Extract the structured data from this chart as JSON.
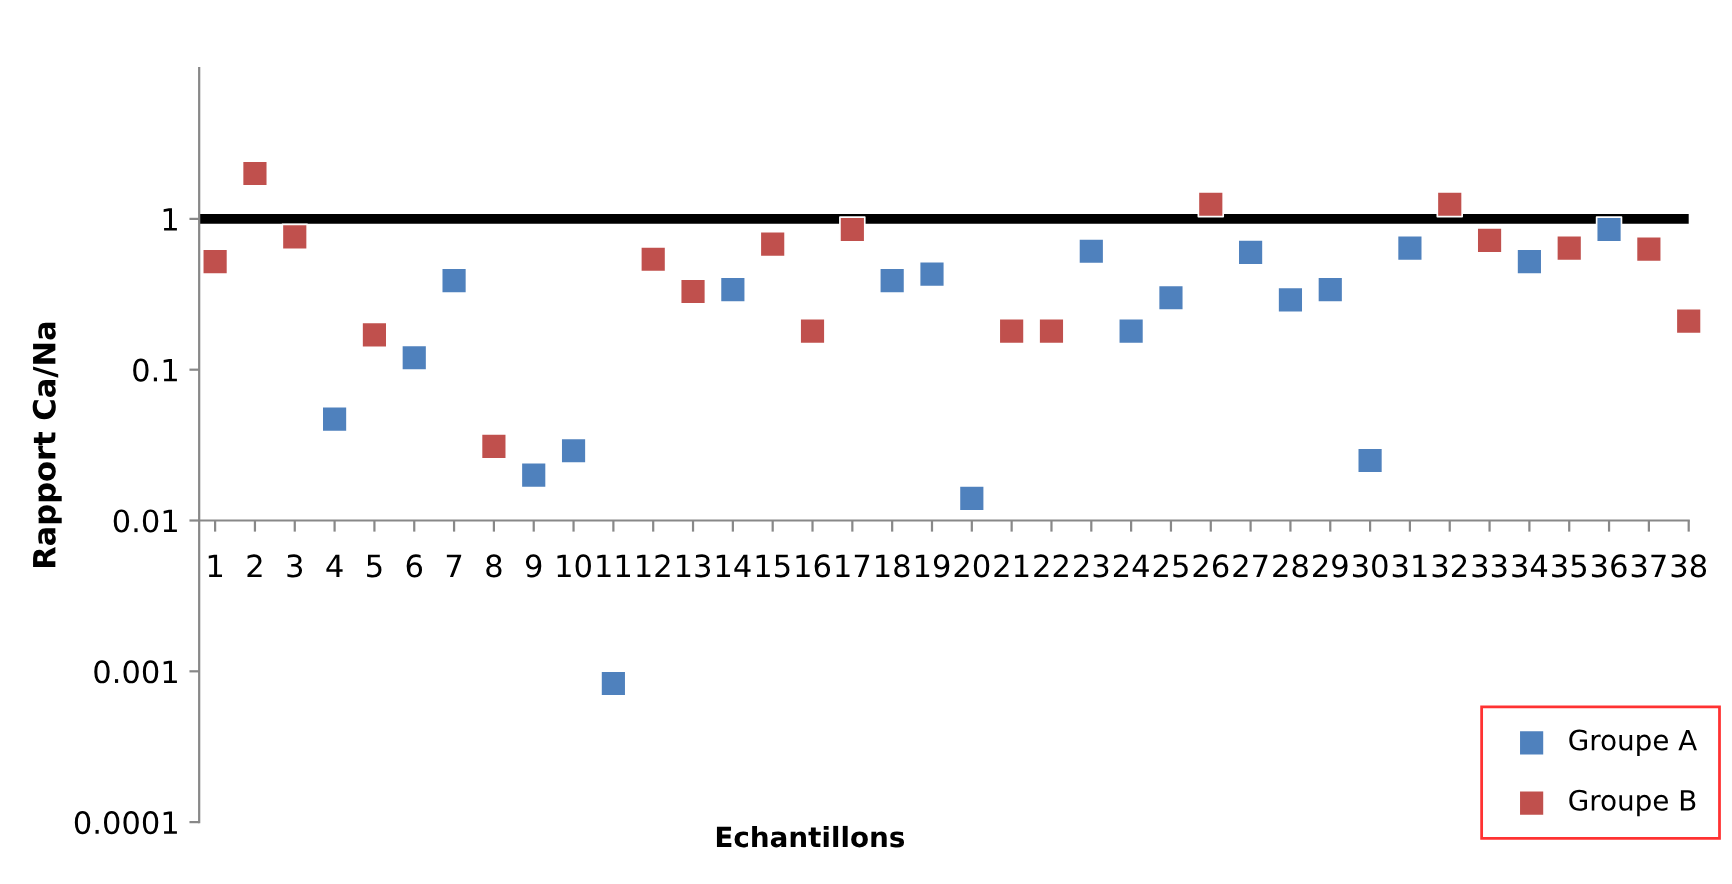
{
  "chart_data": {
    "type": "scatter",
    "xlabel": "Echantillons",
    "ylabel": "Rapport Ca/Na",
    "categories": [
      "1",
      "2",
      "3",
      "4",
      "5",
      "6",
      "7",
      "8",
      "9",
      "10",
      "11",
      "12",
      "13",
      "14",
      "15",
      "16",
      "17",
      "18",
      "19",
      "20",
      "21",
      "22",
      "23",
      "24",
      "25",
      "26",
      "27",
      "28",
      "29",
      "30",
      "31",
      "32",
      "33",
      "34",
      "35",
      "36",
      "37",
      "38"
    ],
    "series": [
      {
        "name": "Groupe A",
        "color": "#4f81bd",
        "values": [
          null,
          null,
          null,
          0.047,
          null,
          0.12,
          0.39,
          null,
          0.02,
          0.029,
          0.00083,
          null,
          null,
          0.34,
          null,
          null,
          null,
          0.39,
          0.43,
          0.014,
          null,
          null,
          0.61,
          0.18,
          0.3,
          null,
          0.6,
          0.29,
          0.34,
          0.025,
          0.64,
          null,
          null,
          0.52,
          null,
          0.85,
          null,
          null
        ]
      },
      {
        "name": "Groupe B",
        "color": "#c0504d",
        "values": [
          0.52,
          2.0,
          0.76,
          null,
          0.17,
          null,
          null,
          0.031,
          null,
          null,
          null,
          0.54,
          0.33,
          null,
          0.68,
          0.18,
          0.85,
          null,
          null,
          null,
          0.18,
          0.18,
          null,
          null,
          null,
          1.25,
          null,
          null,
          null,
          null,
          null,
          1.25,
          0.72,
          null,
          0.64,
          null,
          0.63,
          0.21
        ]
      }
    ],
    "log": "y",
    "ylim": [
      0.0001,
      10
    ],
    "yticks": [
      0.0001,
      0.001,
      0.01,
      0.1,
      1
    ],
    "ref_lines": [
      {
        "axis": "y",
        "value": 1,
        "color": "#000000",
        "line_style": "solid"
      }
    ],
    "marker": "square",
    "grid": false,
    "legend": "bottom right"
  }
}
